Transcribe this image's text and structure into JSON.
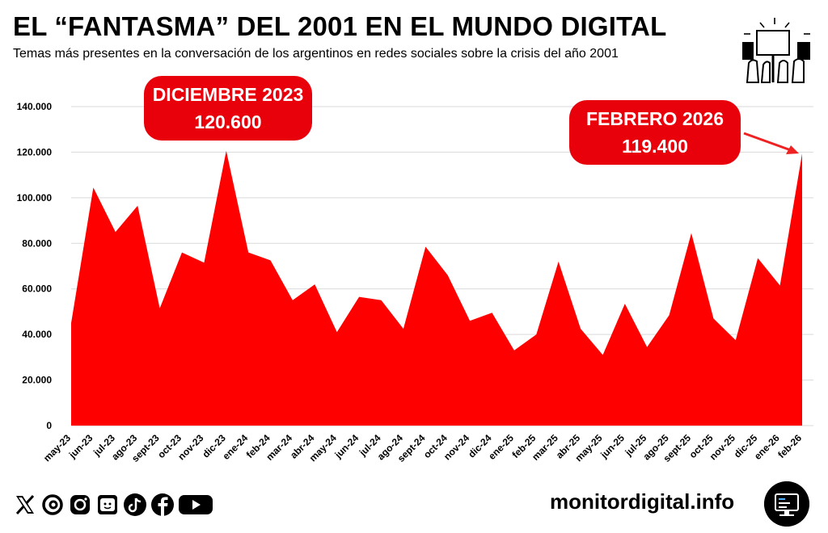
{
  "header": {
    "title": "EL “FANTASMA” DEL 2001 EN EL MUNDO DIGITAL",
    "subtitle": "Temas más presentes en la conversación de los argentinos en redes sociales sobre la crisis del año 2001",
    "illustration": "protest-crowd-icon"
  },
  "callouts": {
    "peak": {
      "month": "DICIEMBRE 2023",
      "value": "120.600"
    },
    "latest": {
      "month": "FEBRERO 2026",
      "value": "119.400"
    }
  },
  "footer": {
    "social_icons": [
      "x-icon",
      "threads-icon",
      "instagram-icon",
      "tv-icon",
      "tiktok-icon",
      "facebook-icon",
      "youtube-icon"
    ],
    "site": "monitordigital.info",
    "logo": "monitor-icon"
  },
  "colors": {
    "area": "#ff0000",
    "callout": "#e8000b",
    "grid": "#d9d9d9",
    "arrow": "#ee2222"
  },
  "chart_data": {
    "type": "area",
    "title": "EL “FANTASMA” DEL 2001 EN EL MUNDO DIGITAL",
    "xlabel": "",
    "ylabel": "",
    "ylim": [
      0,
      140000
    ],
    "yticks": [
      0,
      20000,
      40000,
      60000,
      80000,
      100000,
      120000,
      140000
    ],
    "ytick_labels": [
      "0",
      "20.000",
      "40.000",
      "60.000",
      "80.000",
      "100.000",
      "120.000",
      "140.000"
    ],
    "grid": true,
    "categories": [
      "may-23",
      "jun-23",
      "jul-23",
      "ago-23",
      "sept-23",
      "oct-23",
      "nov-23",
      "dic-23",
      "ene-24",
      "feb-24",
      "mar-24",
      "abr-24",
      "may-24",
      "jun-24",
      "jul-24",
      "ago-24",
      "sept-24",
      "oct-24",
      "nov-24",
      "dic-24",
      "ene-25",
      "feb-25",
      "mar-25",
      "abr-25",
      "may-25",
      "jun-25",
      "jul-25",
      "ago-25",
      "sept-25",
      "oct-25",
      "nov-25",
      "dic-25",
      "ene-26",
      "feb-26"
    ],
    "values": [
      45000,
      104500,
      85000,
      96500,
      51500,
      76000,
      71500,
      120600,
      76000,
      72500,
      55000,
      62000,
      41000,
      56500,
      55000,
      42500,
      78500,
      66000,
      46000,
      49500,
      33000,
      40000,
      72000,
      42500,
      31000,
      53500,
      34500,
      48500,
      84500,
      47000,
      37500,
      73500,
      61500,
      119400
    ]
  }
}
